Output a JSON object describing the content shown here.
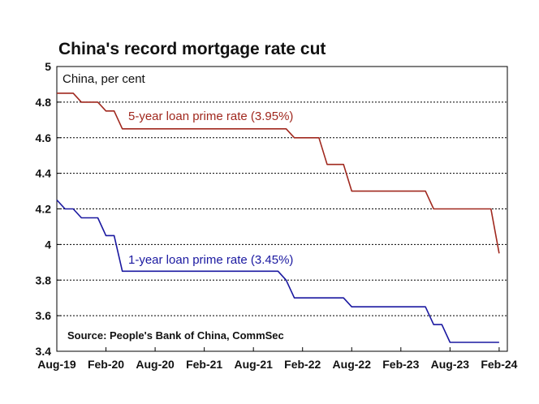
{
  "chart_data": {
    "type": "line",
    "title": "China's record mortgage rate cut",
    "unit_label": "China, per cent",
    "source": "Source: People's Bank of China, CommSec",
    "ylim": [
      3.4,
      5
    ],
    "yticks": [
      3.4,
      3.6,
      3.8,
      4,
      4.2,
      4.4,
      4.6,
      4.8,
      5
    ],
    "ytick_labels": [
      "3.4",
      "3.6",
      "3.8",
      "4",
      "4.2",
      "4.4",
      "4.6",
      "4.8",
      "5"
    ],
    "xlim": [
      "2019-08",
      "2024-03"
    ],
    "xticks": [
      "2019-08",
      "2020-02",
      "2020-08",
      "2021-02",
      "2021-08",
      "2022-02",
      "2022-08",
      "2023-02",
      "2023-08",
      "2024-02"
    ],
    "xtick_labels": [
      "Aug-19",
      "Feb-20",
      "Aug-20",
      "Feb-21",
      "Aug-21",
      "Feb-22",
      "Aug-22",
      "Feb-23",
      "Aug-23",
      "Feb-24"
    ],
    "grid": true,
    "series": [
      {
        "name": "5-year loan prime rate (3.95%)",
        "color": "#a0281e",
        "points": [
          [
            "2019-08",
            4.85
          ],
          [
            "2019-09",
            4.85
          ],
          [
            "2019-10",
            4.85
          ],
          [
            "2019-11",
            4.8
          ],
          [
            "2019-12",
            4.8
          ],
          [
            "2020-01",
            4.8
          ],
          [
            "2020-02",
            4.75
          ],
          [
            "2020-03",
            4.75
          ],
          [
            "2020-04",
            4.65
          ],
          [
            "2020-05",
            4.65
          ],
          [
            "2020-06",
            4.65
          ],
          [
            "2020-07",
            4.65
          ],
          [
            "2020-08",
            4.65
          ],
          [
            "2020-09",
            4.65
          ],
          [
            "2020-10",
            4.65
          ],
          [
            "2020-11",
            4.65
          ],
          [
            "2020-12",
            4.65
          ],
          [
            "2021-01",
            4.65
          ],
          [
            "2021-02",
            4.65
          ],
          [
            "2021-03",
            4.65
          ],
          [
            "2021-04",
            4.65
          ],
          [
            "2021-05",
            4.65
          ],
          [
            "2021-06",
            4.65
          ],
          [
            "2021-07",
            4.65
          ],
          [
            "2021-08",
            4.65
          ],
          [
            "2021-09",
            4.65
          ],
          [
            "2021-10",
            4.65
          ],
          [
            "2021-11",
            4.65
          ],
          [
            "2021-12",
            4.65
          ],
          [
            "2022-01",
            4.6
          ],
          [
            "2022-02",
            4.6
          ],
          [
            "2022-03",
            4.6
          ],
          [
            "2022-04",
            4.6
          ],
          [
            "2022-05",
            4.45
          ],
          [
            "2022-06",
            4.45
          ],
          [
            "2022-07",
            4.45
          ],
          [
            "2022-08",
            4.3
          ],
          [
            "2022-09",
            4.3
          ],
          [
            "2022-10",
            4.3
          ],
          [
            "2022-11",
            4.3
          ],
          [
            "2022-12",
            4.3
          ],
          [
            "2023-01",
            4.3
          ],
          [
            "2023-02",
            4.3
          ],
          [
            "2023-03",
            4.3
          ],
          [
            "2023-04",
            4.3
          ],
          [
            "2023-05",
            4.3
          ],
          [
            "2023-06",
            4.2
          ],
          [
            "2023-07",
            4.2
          ],
          [
            "2023-08",
            4.2
          ],
          [
            "2023-09",
            4.2
          ],
          [
            "2023-10",
            4.2
          ],
          [
            "2023-11",
            4.2
          ],
          [
            "2023-12",
            4.2
          ],
          [
            "2024-01",
            4.2
          ],
          [
            "2024-02",
            3.95
          ]
        ]
      },
      {
        "name": "1-year loan prime rate (3.45%)",
        "color": "#1a18a0",
        "points": [
          [
            "2019-08",
            4.25
          ],
          [
            "2019-09",
            4.2
          ],
          [
            "2019-10",
            4.2
          ],
          [
            "2019-11",
            4.15
          ],
          [
            "2019-12",
            4.15
          ],
          [
            "2020-01",
            4.15
          ],
          [
            "2020-02",
            4.05
          ],
          [
            "2020-03",
            4.05
          ],
          [
            "2020-04",
            3.85
          ],
          [
            "2020-05",
            3.85
          ],
          [
            "2020-06",
            3.85
          ],
          [
            "2020-07",
            3.85
          ],
          [
            "2020-08",
            3.85
          ],
          [
            "2020-09",
            3.85
          ],
          [
            "2020-10",
            3.85
          ],
          [
            "2020-11",
            3.85
          ],
          [
            "2020-12",
            3.85
          ],
          [
            "2021-01",
            3.85
          ],
          [
            "2021-02",
            3.85
          ],
          [
            "2021-03",
            3.85
          ],
          [
            "2021-04",
            3.85
          ],
          [
            "2021-05",
            3.85
          ],
          [
            "2021-06",
            3.85
          ],
          [
            "2021-07",
            3.85
          ],
          [
            "2021-08",
            3.85
          ],
          [
            "2021-09",
            3.85
          ],
          [
            "2021-10",
            3.85
          ],
          [
            "2021-11",
            3.85
          ],
          [
            "2021-12",
            3.8
          ],
          [
            "2022-01",
            3.7
          ],
          [
            "2022-02",
            3.7
          ],
          [
            "2022-03",
            3.7
          ],
          [
            "2022-04",
            3.7
          ],
          [
            "2022-05",
            3.7
          ],
          [
            "2022-06",
            3.7
          ],
          [
            "2022-07",
            3.7
          ],
          [
            "2022-08",
            3.65
          ],
          [
            "2022-09",
            3.65
          ],
          [
            "2022-10",
            3.65
          ],
          [
            "2022-11",
            3.65
          ],
          [
            "2022-12",
            3.65
          ],
          [
            "2023-01",
            3.65
          ],
          [
            "2023-02",
            3.65
          ],
          [
            "2023-03",
            3.65
          ],
          [
            "2023-04",
            3.65
          ],
          [
            "2023-05",
            3.65
          ],
          [
            "2023-06",
            3.55
          ],
          [
            "2023-07",
            3.55
          ],
          [
            "2023-08",
            3.45
          ],
          [
            "2023-09",
            3.45
          ],
          [
            "2023-10",
            3.45
          ],
          [
            "2023-11",
            3.45
          ],
          [
            "2023-12",
            3.45
          ],
          [
            "2024-01",
            3.45
          ],
          [
            "2024-02",
            3.45
          ]
        ]
      }
    ]
  }
}
